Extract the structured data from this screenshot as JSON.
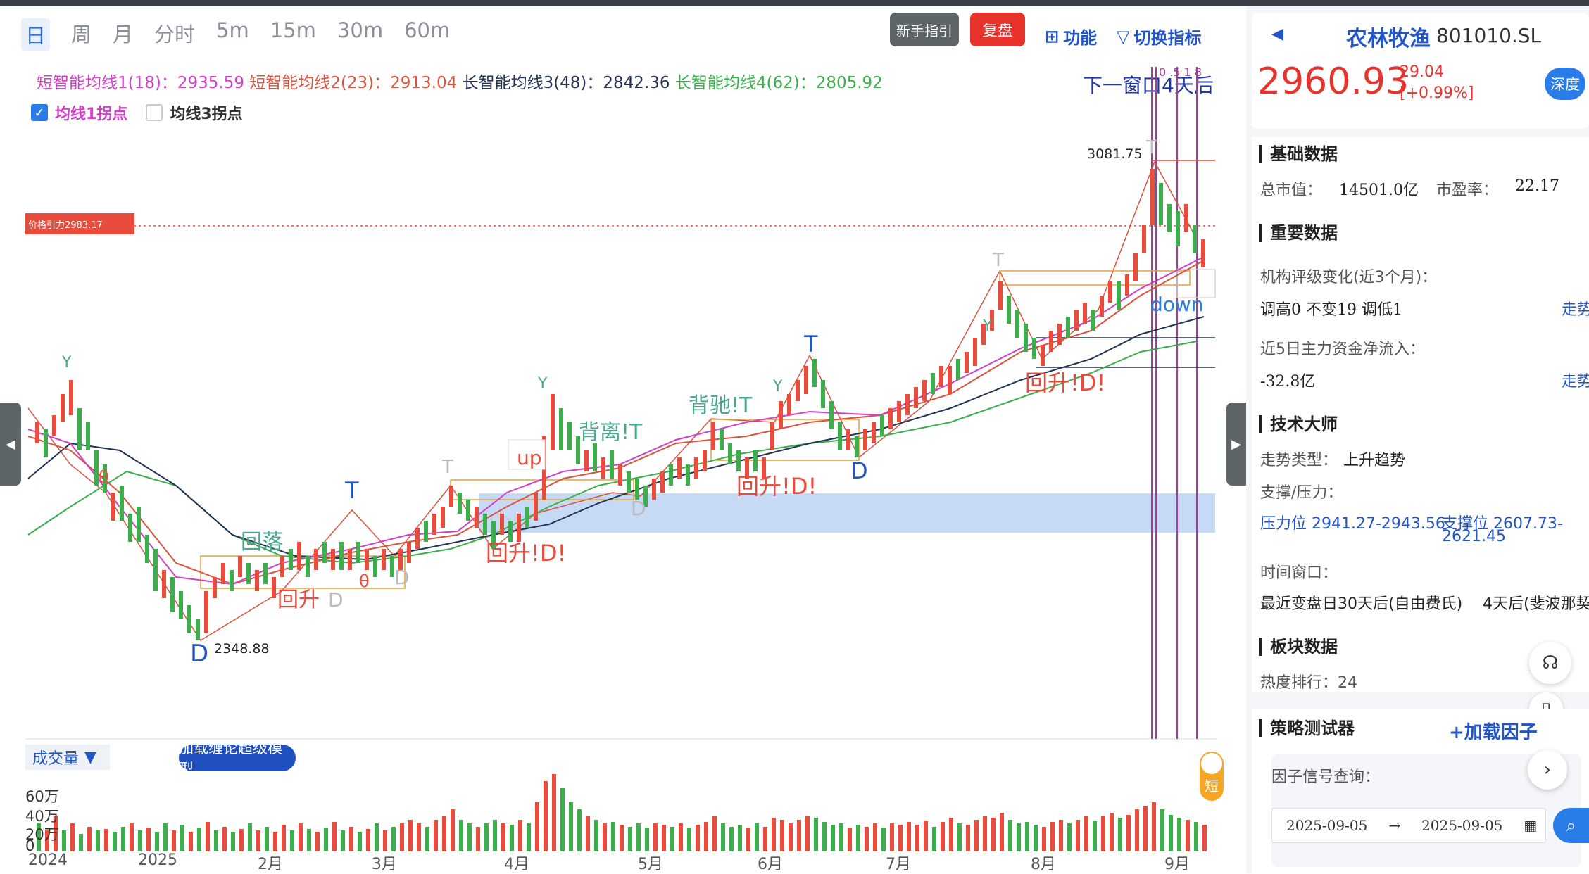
{
  "timeframes": [
    "日",
    "周",
    "月",
    "分时",
    "5m",
    "15m",
    "30m",
    "60m"
  ],
  "toolbar": {
    "guide_label": "新手指引",
    "replay_label": "复盘",
    "func_label": "功能",
    "switch_label": "切换指标"
  },
  "ma": {
    "ma1": "短智能均线1(18)：2935.59",
    "ma2": "短智能均线2(23)：2913.04",
    "ma3": "长智能均线3(48)：2842.36",
    "ma4": "长智能均线4(62)：2805.92"
  },
  "next_window": "下一窗口4天后",
  "checks": {
    "c1": "均线1拐点",
    "c2": "均线3拐点"
  },
  "price_tag": "价格引力2983.17",
  "annotations": {
    "high": "3081.75",
    "low": "2348.88",
    "fib": "0  .5  1  8",
    "huiluo": "回落",
    "huisheng": "回升",
    "huisheng_d": "回升!D!",
    "beili": "背离!T",
    "beichi": "背驰!T",
    "up": "up",
    "down": "down",
    "T": "T",
    "D": "D",
    "Y": "Y",
    "theta": "θ"
  },
  "volume": {
    "selector": "成交量",
    "chan_button": "加载缠论超级模型",
    "short_tag": "短",
    "ticks": [
      "60万",
      "40万",
      "20万",
      "0"
    ]
  },
  "x_axis": [
    "2024",
    "2025",
    "2月",
    "3月",
    "4月",
    "5月",
    "6月",
    "7月",
    "8月",
    "9月"
  ],
  "stock": {
    "name": "农林牧渔",
    "code": "801010.SL",
    "price": "2960.93",
    "change": "29.04",
    "change_pct": "[+0.99%]",
    "depth_label": "深度"
  },
  "basic": {
    "title": "基础数据",
    "mcap_label": "总市值：",
    "mcap_value": "14501.0亿",
    "pe_label": "市盈率：",
    "pe_value": "22.17"
  },
  "important": {
    "title": "重要数据",
    "rating_label": "机构评级变化(近3个月)：",
    "rating_value": "调高0   不变19  调低1",
    "trend_link": "走势",
    "flow_label": "近5日主力资金净流入：",
    "flow_value": "-32.8亿",
    "trend_link2": "走势"
  },
  "tech": {
    "title": "技术大师",
    "trend_type_label": "走势类型：",
    "trend_type_value": "上升趋势",
    "sr_label": "支撑/压力：",
    "resistance": "压力位 2941.27-2943.56",
    "support1": "支撑位 2607.73-",
    "support2": "2621.45",
    "window_label": "时间窗口：",
    "window_value1": "最近变盘日30天后(自由费氏)",
    "window_value2": "4天后(斐波那契"
  },
  "sector": {
    "title": "板块数据",
    "heat": "热度排行：24"
  },
  "strategy": {
    "title": "策略测试器",
    "add_factor": "+加载因子",
    "query_label": "因子信号查询：",
    "date_from": "2025-09-05",
    "date_to": "2025-09-05"
  }
}
